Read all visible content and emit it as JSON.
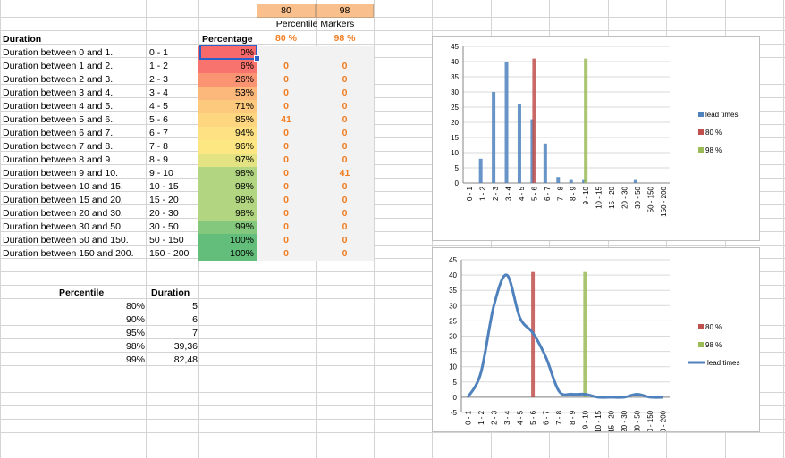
{
  "top_headers": {
    "p80_value": "80",
    "p98_value": "98",
    "markers_title": "Percentile Markers",
    "p80_label": "80 %",
    "p98_label": "98 %"
  },
  "table": {
    "header_duration": "Duration",
    "header_percentage": "Percentage",
    "rows": [
      {
        "label": "Duration between 0 and 1.",
        "range": "0 - 1",
        "pct": "0%",
        "m80": "",
        "m98": "",
        "color": "#f8696b"
      },
      {
        "label": "Duration between 1 and 2.",
        "range": "1 - 2",
        "pct": "6%",
        "m80": "0",
        "m98": "0",
        "color": "#f8736d"
      },
      {
        "label": "Duration between 2 and 3.",
        "range": "2 - 3",
        "pct": "26%",
        "m80": "0",
        "m98": "0",
        "color": "#fa9473"
      },
      {
        "label": "Duration between 3 and 4.",
        "range": "3 - 4",
        "pct": "53%",
        "m80": "0",
        "m98": "0",
        "color": "#fcb77a"
      },
      {
        "label": "Duration between 4 and 5.",
        "range": "4 - 5",
        "pct": "71%",
        "m80": "0",
        "m98": "0",
        "color": "#fdc97d"
      },
      {
        "label": "Duration between 5 and 6.",
        "range": "5 - 6",
        "pct": "85%",
        "m80": "41",
        "m98": "0",
        "color": "#fed680"
      },
      {
        "label": "Duration between 6 and 7.",
        "range": "6 - 7",
        "pct": "94%",
        "m80": "0",
        "m98": "0",
        "color": "#fee182"
      },
      {
        "label": "Duration between 7 and 8.",
        "range": "7 - 8",
        "pct": "96%",
        "m80": "0",
        "m98": "0",
        "color": "#fde783"
      },
      {
        "label": "Duration between 8 and 9.",
        "range": "8 - 9",
        "pct": "97%",
        "m80": "0",
        "m98": "0",
        "color": "#e4e383"
      },
      {
        "label": "Duration between 9 and 10.",
        "range": "9 - 10",
        "pct": "98%",
        "m80": "0",
        "m98": "41",
        "color": "#b1d580"
      },
      {
        "label": "Duration between 10 and 15.",
        "range": "10 - 15",
        "pct": "98%",
        "m80": "0",
        "m98": "0",
        "color": "#b1d580"
      },
      {
        "label": "Duration between 15 and 20.",
        "range": "15 - 20",
        "pct": "98%",
        "m80": "0",
        "m98": "0",
        "color": "#b1d580"
      },
      {
        "label": "Duration between 20 and 30.",
        "range": "20 - 30",
        "pct": "98%",
        "m80": "0",
        "m98": "0",
        "color": "#b1d580"
      },
      {
        "label": "Duration between 30 and 50.",
        "range": "30 - 50",
        "pct": "99%",
        "m80": "0",
        "m98": "0",
        "color": "#84c87e"
      },
      {
        "label": "Duration between 50 and 150.",
        "range": "50 - 150",
        "pct": "100%",
        "m80": "0",
        "m98": "0",
        "color": "#63be7b"
      },
      {
        "label": "Duration between 150 and 200.",
        "range": "150 - 200",
        "pct": "100%",
        "m80": "0",
        "m98": "0",
        "color": "#63be7b"
      }
    ]
  },
  "percentile_table": {
    "header_percentile": "Percentile",
    "header_duration": "Duration",
    "rows": [
      {
        "p": "80%",
        "d": "5"
      },
      {
        "p": "90%",
        "d": "6"
      },
      {
        "p": "95%",
        "d": "7"
      },
      {
        "p": "98%",
        "d": "39,36"
      },
      {
        "p": "99%",
        "d": "82,48"
      }
    ]
  },
  "chart_data": [
    {
      "type": "bar",
      "categories": [
        "0 - 1",
        "1 - 2",
        "2 - 3",
        "3 - 4",
        "4 - 5",
        "5 - 6",
        "6 - 7",
        "7 - 8",
        "8 - 9",
        "9 - 10",
        "10 - 15",
        "15 - 20",
        "20 - 30",
        "30 - 50",
        "50 - 150",
        "150 - 200"
      ],
      "series": [
        {
          "name": "lead times",
          "values": [
            0,
            8,
            30,
            40,
            26,
            21,
            13,
            2,
            1,
            1,
            0,
            0,
            0,
            1,
            0,
            0
          ],
          "color": "#4f81bd"
        },
        {
          "name": "80 %",
          "values": [
            0,
            0,
            0,
            0,
            0,
            41,
            0,
            0,
            0,
            0,
            0,
            0,
            0,
            0,
            0,
            0
          ],
          "color": "#c0504d"
        },
        {
          "name": "98 %",
          "values": [
            0,
            0,
            0,
            0,
            0,
            0,
            0,
            0,
            0,
            41,
            0,
            0,
            0,
            0,
            0,
            0
          ],
          "color": "#9bbb59"
        }
      ],
      "ylim": [
        0,
        45
      ],
      "yticks": [
        "0",
        "5",
        "10",
        "15",
        "20",
        "25",
        "30",
        "35",
        "40",
        "45"
      ],
      "legend": "right"
    },
    {
      "type": "line",
      "categories": [
        "0 - 1",
        "1 - 2",
        "2 - 3",
        "3 - 4",
        "4 - 5",
        "5 - 6",
        "6 - 7",
        "7 - 8",
        "8 - 9",
        "9 - 10",
        "10 - 15",
        "15 - 20",
        "20 - 30",
        "30 - 50",
        "50 - 150",
        "150 - 200"
      ],
      "series": [
        {
          "name": "80 %",
          "values": [
            0,
            0,
            0,
            0,
            0,
            41,
            0,
            0,
            0,
            0,
            0,
            0,
            0,
            0,
            0,
            0
          ],
          "color": "#c0504d",
          "kind": "bar"
        },
        {
          "name": "98 %",
          "values": [
            0,
            0,
            0,
            0,
            0,
            0,
            0,
            0,
            0,
            41,
            0,
            0,
            0,
            0,
            0,
            0
          ],
          "color": "#9bbb59",
          "kind": "bar"
        },
        {
          "name": "lead times",
          "values": [
            0,
            8,
            30,
            40,
            26,
            21,
            13,
            2,
            1,
            1,
            0,
            0,
            0,
            1,
            0,
            0
          ],
          "color": "#4f81bd",
          "kind": "line"
        }
      ],
      "ylim": [
        -5,
        45
      ],
      "yticks": [
        "-5",
        "0",
        "5",
        "10",
        "15",
        "20",
        "25",
        "30",
        "35",
        "40",
        "45"
      ],
      "legend": "right"
    }
  ]
}
